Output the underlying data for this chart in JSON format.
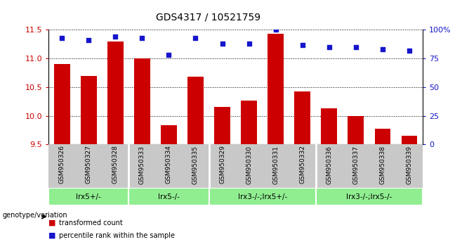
{
  "title": "GDS4317 / 10521759",
  "samples": [
    "GSM950326",
    "GSM950327",
    "GSM950328",
    "GSM950333",
    "GSM950334",
    "GSM950335",
    "GSM950329",
    "GSM950330",
    "GSM950331",
    "GSM950332",
    "GSM950336",
    "GSM950337",
    "GSM950338",
    "GSM950339"
  ],
  "bar_values": [
    10.9,
    10.7,
    11.3,
    11.0,
    9.83,
    10.68,
    10.15,
    10.27,
    11.43,
    10.43,
    10.13,
    10.0,
    9.77,
    9.65
  ],
  "dot_values": [
    93,
    91,
    94,
    93,
    78,
    93,
    88,
    88,
    100,
    87,
    85,
    85,
    83,
    82
  ],
  "ylim_left": [
    9.5,
    11.5
  ],
  "ylim_right": [
    0,
    100
  ],
  "yticks_left": [
    9.5,
    10.0,
    10.5,
    11.0,
    11.5
  ],
  "yticks_right": [
    0,
    25,
    50,
    75,
    100
  ],
  "ytick_labels_right": [
    "0",
    "25",
    "50",
    "75",
    "100%"
  ],
  "bar_color": "#CC0000",
  "dot_color": "#1515CC",
  "groups": [
    {
      "label": "lrx5+/-",
      "start": 0,
      "end": 3
    },
    {
      "label": "lrx5-/-",
      "start": 3,
      "end": 6
    },
    {
      "label": "lrx3-/-;lrx5+/-",
      "start": 6,
      "end": 10
    },
    {
      "label": "lrx3-/-;lrx5-/-",
      "start": 10,
      "end": 14
    }
  ],
  "group_dividers": [
    3,
    6,
    10
  ],
  "genotype_label": "genotype/variation",
  "legend_bar_label": "transformed count",
  "legend_dot_label": "percentile rank within the sample",
  "axis_label_color_left": "#CC0000",
  "axis_label_color_right": "#1515CC",
  "group_color": "#90EE90",
  "sample_bg_color": "#C8C8C8",
  "sample_divider_color": "#FFFFFF"
}
